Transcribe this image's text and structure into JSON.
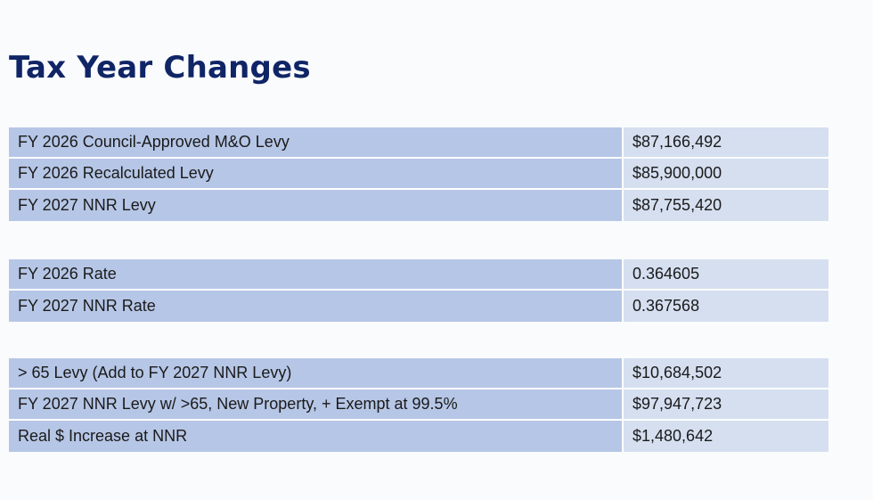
{
  "title": "Tax Year Changes",
  "groups": {
    "levy": [
      {
        "label": "FY 2026 Council-Approved M&O Levy",
        "value": "$87,166,492"
      },
      {
        "label": "FY 2026 Recalculated Levy",
        "value": "$85,900,000"
      },
      {
        "label": "FY 2027 NNR Levy",
        "value": "$87,755,420"
      }
    ],
    "rate": [
      {
        "label": "FY 2026 Rate",
        "value": "0.364605"
      },
      {
        "label": "FY 2027 NNR Rate",
        "value": "0.367568"
      }
    ],
    "exempt": [
      {
        "label": "> 65 Levy (Add to FY 2027 NNR Levy)",
        "value": "$10,684,502"
      },
      {
        "label": "FY 2027 NNR Levy w/ >65, New Property, + Exempt at 99.5%",
        "value": "$97,947,723"
      },
      {
        "label": "Real $ Increase at NNR",
        "value": "$1,480,642"
      }
    ]
  },
  "colors": {
    "title": "#0f2566",
    "label_cell": "#b6c6e6",
    "value_cell": "#d5dff0",
    "background": "#fafbfd"
  }
}
